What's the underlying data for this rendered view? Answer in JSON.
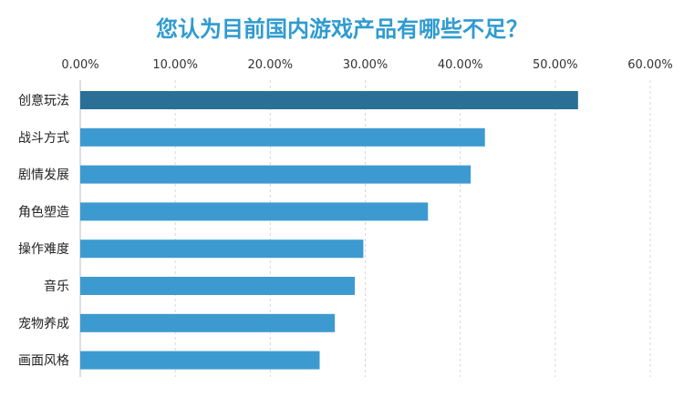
{
  "chart_data": {
    "type": "bar",
    "orientation": "horizontal",
    "title": "您认为目前国内游戏产品有哪些不足？",
    "categories": [
      "创意玩法",
      "战斗方式",
      "剧情发展",
      "角色塑造",
      "操作难度",
      "音乐",
      "宠物养成",
      "画面风格"
    ],
    "values": [
      52.4,
      42.6,
      41.1,
      36.6,
      29.8,
      28.9,
      26.8,
      25.2
    ],
    "xlim": [
      0,
      60
    ],
    "x_ticks": [
      "0.00%",
      "10.00%",
      "20.00%",
      "30.00%",
      "40.00%",
      "50.00%",
      "60.00%"
    ],
    "x_tick_values": [
      0,
      10,
      20,
      30,
      40,
      50,
      60
    ],
    "x_axis_position": "top",
    "grid": true,
    "bar_color": "#3d9ad0",
    "highlight_color": "#2a6f95",
    "highlight_index": 0
  }
}
